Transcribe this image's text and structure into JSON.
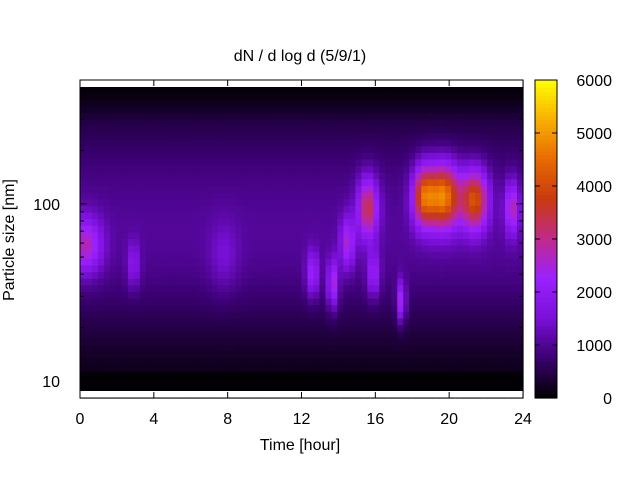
{
  "chart_data": {
    "type": "heatmap",
    "title": "dN / d log d (5/9/1)",
    "xlabel": "Time [hour]",
    "ylabel": "Particle size [nm]",
    "xlim": [
      0,
      24
    ],
    "ylim": [
      8,
      500
    ],
    "yscale": "log",
    "x_ticks": [
      0,
      4,
      8,
      12,
      16,
      20,
      24
    ],
    "x_tick_labels": [
      "0",
      "4",
      "8",
      "12",
      "16",
      "20",
      "24"
    ],
    "y_ticks": [
      10,
      100
    ],
    "y_tick_labels": [
      "10",
      "100"
    ],
    "colorbar": {
      "range": [
        0,
        6000
      ],
      "ticks": [
        0,
        1000,
        2000,
        3000,
        4000,
        5000,
        6000
      ],
      "tick_labels": [
        "0",
        "1000",
        "2000",
        "3000",
        "4000",
        "5000",
        "6000"
      ],
      "colormap": [
        "#000000",
        "#3a0070",
        "#7a10d8",
        "#9b20ff",
        "#c02a8a",
        "#c83a10",
        "#e86a00",
        "#f8b000",
        "#ffff00"
      ]
    },
    "grid": false,
    "background_level": 1000,
    "modes": [
      {
        "t": 0.3,
        "d": 58,
        "amp": 1700,
        "w_t": 0.9,
        "w_d": 0.16
      },
      {
        "t": 2.9,
        "d": 45,
        "amp": 900,
        "w_t": 0.35,
        "w_d": 0.13
      },
      {
        "t": 7.8,
        "d": 50,
        "amp": 500,
        "w_t": 0.8,
        "w_d": 0.2
      },
      {
        "t": 12.6,
        "d": 40,
        "amp": 1400,
        "w_t": 0.35,
        "w_d": 0.13
      },
      {
        "t": 13.7,
        "d": 35,
        "amp": 1700,
        "w_t": 0.3,
        "w_d": 0.14
      },
      {
        "t": 14.5,
        "d": 60,
        "amp": 1500,
        "w_t": 0.4,
        "w_d": 0.15
      },
      {
        "t": 15.6,
        "d": 95,
        "amp": 2400,
        "w_t": 0.55,
        "w_d": 0.17
      },
      {
        "t": 15.9,
        "d": 40,
        "amp": 1300,
        "w_t": 0.35,
        "w_d": 0.13
      },
      {
        "t": 17.4,
        "d": 28,
        "amp": 1700,
        "w_t": 0.25,
        "w_d": 0.12
      },
      {
        "t": 18.6,
        "d": 110,
        "amp": 2800,
        "w_t": 0.6,
        "w_d": 0.17
      },
      {
        "t": 19.7,
        "d": 110,
        "amp": 3800,
        "w_t": 0.9,
        "w_d": 0.18
      },
      {
        "t": 21.4,
        "d": 105,
        "amp": 3100,
        "w_t": 0.7,
        "w_d": 0.17
      },
      {
        "t": 23.4,
        "d": 95,
        "amp": 1800,
        "w_t": 0.4,
        "w_d": 0.15
      }
    ]
  }
}
